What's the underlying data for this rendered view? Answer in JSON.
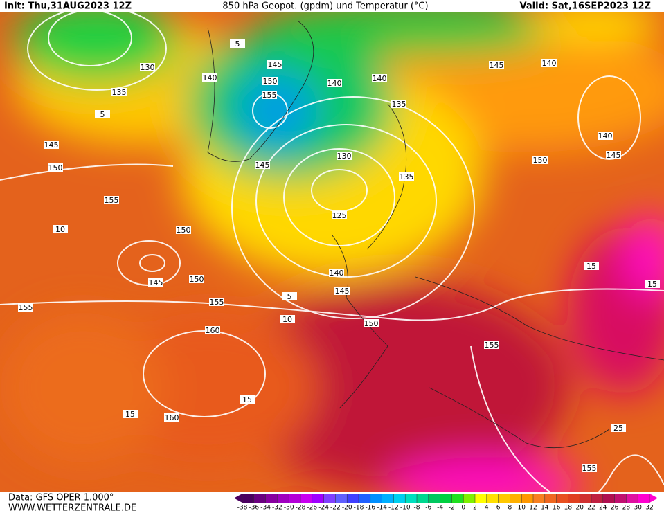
{
  "header": {
    "init": "Init: Thu,31AUG2023 12Z",
    "title": "850 hPa Geopot. (gpdm) und Temperatur (°C)",
    "valid": "Valid: Sat,16SEP2023 12Z"
  },
  "contour_labels": [
    "130",
    "135",
    "140",
    "145",
    "150",
    "155",
    "140",
    "140",
    "135",
    "145",
    "140",
    "140",
    "145",
    "150",
    "145",
    "150",
    "155",
    "150",
    "145",
    "130",
    "135",
    "125",
    "140",
    "145",
    "150",
    "145",
    "150",
    "155",
    "155",
    "160",
    "160",
    "155",
    "155",
    "15",
    "15",
    "25",
    "10",
    "5",
    "5",
    "5",
    "10",
    "15",
    "15"
  ],
  "legend": {
    "ticks": [
      -38,
      -36,
      -34,
      -32,
      -30,
      -28,
      -26,
      -24,
      -22,
      -20,
      -18,
      -16,
      -14,
      -12,
      -10,
      -8,
      -6,
      -4,
      -2,
      0,
      2,
      4,
      6,
      8,
      10,
      12,
      14,
      16,
      18,
      20,
      22,
      24,
      26,
      28,
      30,
      32
    ],
    "colors": [
      "#4b0060",
      "#6a0080",
      "#8800a0",
      "#a000c0",
      "#b400d8",
      "#c800f0",
      "#a000ff",
      "#8040ff",
      "#6060ff",
      "#4040ff",
      "#2060ff",
      "#0090ff",
      "#00b0ff",
      "#00d0f0",
      "#00e0c0",
      "#00d890",
      "#00c860",
      "#00d040",
      "#20e020",
      "#80f000",
      "#ffff00",
      "#ffe000",
      "#ffc800",
      "#ffb000",
      "#ff9800",
      "#f88020",
      "#f06820",
      "#e85020",
      "#e04020",
      "#d03030",
      "#c02040",
      "#b01050",
      "#c01070",
      "#e010a0",
      "#ff00d0"
    ]
  },
  "footer": {
    "source": "Data: GFS OPER 1.000°",
    "website": "WWW.WETTERZENTRALE.DE"
  }
}
